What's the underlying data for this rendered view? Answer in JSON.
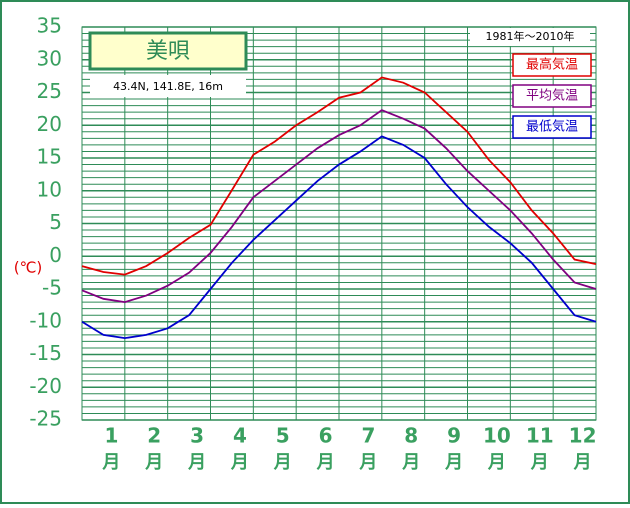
{
  "chart_data": {
    "type": "line",
    "title": "美唄",
    "subtitle": "43.4N,  141.8E,  16m",
    "period": "1981年～2010年",
    "y_label": "(℃)",
    "month_unit": "月",
    "x": [
      0.5,
      1,
      1.5,
      2,
      2.5,
      3,
      3.5,
      4,
      4.5,
      5,
      5.5,
      6,
      6.5,
      7,
      7.5,
      8,
      8.5,
      9,
      9.5,
      10,
      10.5,
      11,
      11.5,
      12,
      12.5
    ],
    "xlim": [
      0.5,
      12.5
    ],
    "xticks": [
      1,
      2,
      3,
      4,
      5,
      6,
      7,
      8,
      9,
      10,
      11,
      12
    ],
    "ylim": [
      -25,
      35
    ],
    "yticks": [
      -25,
      -20,
      -15,
      -10,
      -5,
      0,
      5,
      10,
      15,
      20,
      25,
      30,
      35
    ],
    "grid": true,
    "grid_step": 1,
    "series": [
      {
        "name": "最高気温",
        "color": "#e00000",
        "values": [
          -1.5,
          -2.4,
          -2.8,
          -1.5,
          0.5,
          2.8,
          4.8,
          10.1,
          15.5,
          17.5,
          20,
          22,
          24.2,
          25,
          27.3,
          26.5,
          25,
          22,
          19,
          14.7,
          11.3,
          7,
          3.5,
          -0.5,
          -1.2
        ]
      },
      {
        "name": "平均気温",
        "color": "#800080",
        "values": [
          -5.2,
          -6.5,
          -7,
          -6,
          -4.5,
          -2.5,
          0.5,
          4.5,
          9,
          11.5,
          14,
          16.5,
          18.5,
          20,
          22.3,
          21,
          19.5,
          16.5,
          13,
          10,
          7,
          3.5,
          -0.5,
          -4,
          -5
        ]
      },
      {
        "name": "最低気温",
        "color": "#0000cc",
        "values": [
          -10,
          -12,
          -12.5,
          -12,
          -11,
          -9,
          -5,
          -1,
          2.5,
          5.5,
          8.5,
          11.5,
          14,
          16,
          18.3,
          17,
          15,
          11,
          7.5,
          4.5,
          2,
          -1,
          -5,
          -9,
          -10
        ]
      }
    ]
  }
}
